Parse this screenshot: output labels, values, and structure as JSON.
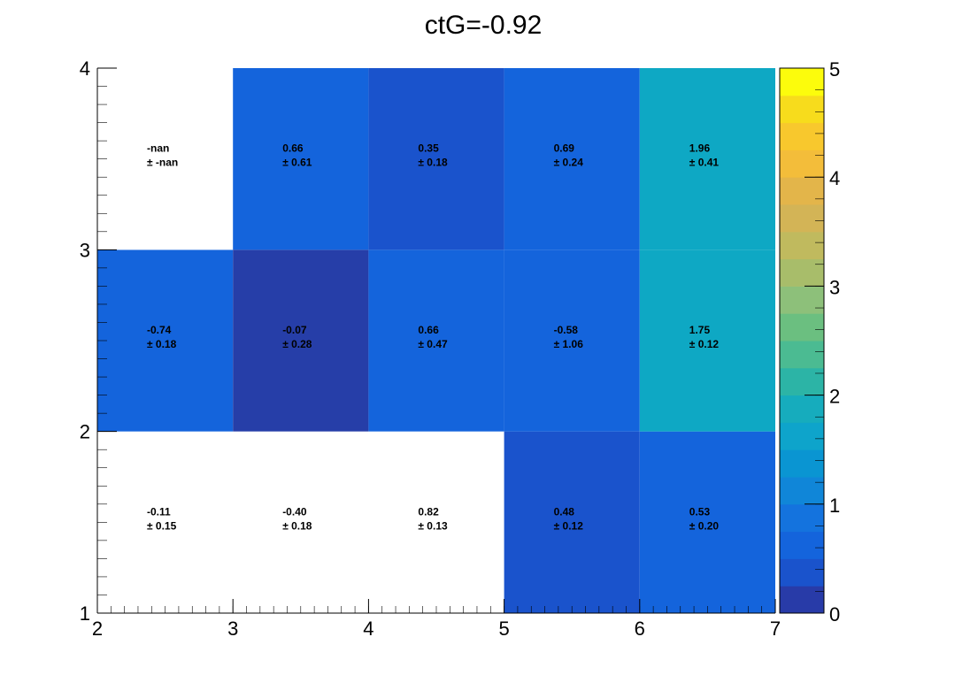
{
  "chart_data": {
    "type": "heatmap",
    "title": "ctG=-0.92",
    "xlabel": "",
    "ylabel": "",
    "xlim": [
      2,
      7
    ],
    "ylim": [
      1,
      4
    ],
    "x_bin_edges": [
      2,
      3,
      4,
      5,
      6,
      7
    ],
    "y_bin_edges": [
      1,
      2,
      3,
      4
    ],
    "x_ticks": [
      "2",
      "3",
      "4",
      "5",
      "6",
      "7"
    ],
    "y_ticks": [
      "1",
      "2",
      "3",
      "4"
    ],
    "colorbar": {
      "range": [
        0,
        5
      ],
      "ticks": [
        "0",
        "1",
        "2",
        "3",
        "4",
        "5"
      ],
      "palette": "parula-like",
      "levels": 20
    },
    "grid": false,
    "cells": [
      {
        "x": [
          2,
          3
        ],
        "y": [
          1,
          2
        ],
        "value": -0.11,
        "label": "-0.11",
        "err": "± 0.15",
        "color": "#ffffff"
      },
      {
        "x": [
          3,
          4
        ],
        "y": [
          1,
          2
        ],
        "value": -0.4,
        "label": "-0.40",
        "err": "± 0.18",
        "color": "#ffffff"
      },
      {
        "x": [
          4,
          5
        ],
        "y": [
          1,
          2
        ],
        "value": 0.82,
        "label": "0.82",
        "err": "± 0.13",
        "color": "#ffffff"
      },
      {
        "x": [
          5,
          6
        ],
        "y": [
          1,
          2
        ],
        "value": 0.48,
        "label": "0.48",
        "err": "± 0.12",
        "color": "#1a53cc"
      },
      {
        "x": [
          6,
          7
        ],
        "y": [
          1,
          2
        ],
        "value": 0.53,
        "label": "0.53",
        "err": "± 0.20",
        "color": "#1464dc"
      },
      {
        "x": [
          2,
          3
        ],
        "y": [
          2,
          3
        ],
        "value": -0.74,
        "label": "-0.74",
        "err": "± 0.18",
        "color": "#1464dc"
      },
      {
        "x": [
          3,
          4
        ],
        "y": [
          2,
          3
        ],
        "value": -0.07,
        "label": "-0.07",
        "err": "± 0.28",
        "color": "#263ea8"
      },
      {
        "x": [
          4,
          5
        ],
        "y": [
          2,
          3
        ],
        "value": 0.66,
        "label": "0.66",
        "err": "± 0.47",
        "color": "#1464dc"
      },
      {
        "x": [
          5,
          6
        ],
        "y": [
          2,
          3
        ],
        "value": -0.58,
        "label": "-0.58",
        "err": "± 1.06",
        "color": "#1464dc"
      },
      {
        "x": [
          6,
          7
        ],
        "y": [
          2,
          3
        ],
        "value": 1.75,
        "label": "1.75",
        "err": "± 0.12",
        "color": "#0ea8c4"
      },
      {
        "x": [
          2,
          3
        ],
        "y": [
          3,
          4
        ],
        "value": null,
        "label": "-nan",
        "err": "± -nan",
        "color": "#ffffff"
      },
      {
        "x": [
          3,
          4
        ],
        "y": [
          3,
          4
        ],
        "value": 0.66,
        "label": "0.66",
        "err": "± 0.61",
        "color": "#1464dc"
      },
      {
        "x": [
          4,
          5
        ],
        "y": [
          3,
          4
        ],
        "value": 0.35,
        "label": "0.35",
        "err": "± 0.18",
        "color": "#1a53cc"
      },
      {
        "x": [
          5,
          6
        ],
        "y": [
          3,
          4
        ],
        "value": 0.69,
        "label": "0.69",
        "err": "± 0.24",
        "color": "#1464dc"
      },
      {
        "x": [
          6,
          7
        ],
        "y": [
          3,
          4
        ],
        "value": 1.96,
        "label": "1.96",
        "err": "± 0.41",
        "color": "#0ea8c4"
      }
    ]
  },
  "colors": {
    "palette": [
      "#283ba8",
      "#1a53cc",
      "#1464dc",
      "#1473de",
      "#1086d8",
      "#0a95d2",
      "#0ea4cb",
      "#16acbd",
      "#2cb4a6",
      "#4bbb92",
      "#6bbf80",
      "#8dc07a",
      "#a8bd6a",
      "#c0ba5e",
      "#d3b456",
      "#e3b54a",
      "#f3bd3a",
      "#f8c82d",
      "#f7dc1c",
      "#fcfc0c"
    ],
    "axis": "#000000"
  }
}
